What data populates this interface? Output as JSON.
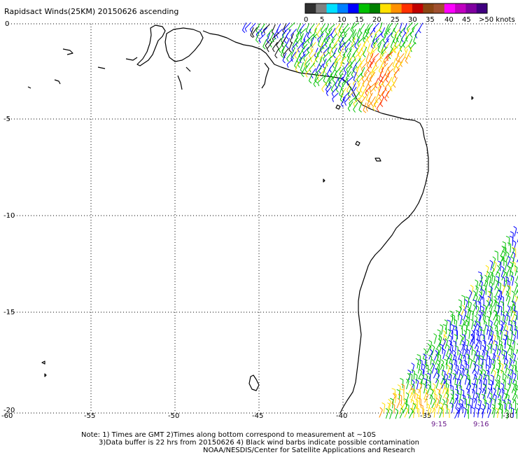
{
  "title": "Rapidsact Winds(25KM) 20150626 ascending",
  "color_scale": {
    "labels": [
      "0",
      "5",
      "10",
      "15",
      "20",
      "25",
      "30",
      "35",
      "40",
      "45",
      ">50 knots"
    ],
    "colors": [
      "#303030",
      "#808080",
      "#00e0ff",
      "#0080ff",
      "#0000ff",
      "#00c000",
      "#008000",
      "#ffe000",
      "#ff9000",
      "#ff3000",
      "#c00000",
      "#8b4513",
      "#a05030",
      "#ff00ff",
      "#c000c0",
      "#8000a0",
      "#400080"
    ]
  },
  "axes": {
    "lat_labels": [
      "0",
      "-5",
      "-10",
      "-15",
      "-20"
    ],
    "lon_labels": [
      "-60",
      "-55",
      "-50",
      "-45",
      "-40",
      "-35",
      "-30"
    ]
  },
  "pass_times": [
    "9:15",
    "9:16"
  ],
  "footer": {
    "line1": "Note: 1) Times are GMT 2)Times along bottom correspond to measurement at ~10S",
    "line2": "3)Data buffer is 22 hrs from 20150626 4) Black wind barbs indicate possible contamination",
    "line3": "NOAA/NESDIS/Center for Satellite Applications and Research"
  }
}
